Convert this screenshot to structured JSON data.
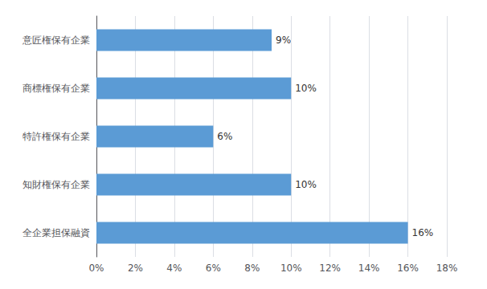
{
  "chart_data": {
    "type": "bar",
    "orientation": "horizontal",
    "categories": [
      "全企業担保融資",
      "知財権保有企業",
      "特許権保有企業",
      "商標権保有企業",
      "意匠権保有企業"
    ],
    "values": [
      16,
      10,
      6,
      10,
      9
    ],
    "value_labels": [
      "16%",
      "10%",
      "6%",
      "10%",
      "9%"
    ],
    "data_labels": true,
    "color": "#5b9bd5",
    "xlim": [
      0,
      18
    ],
    "xticks": [
      {
        "value": 0,
        "label": "0%"
      },
      {
        "value": 2,
        "label": "2%"
      },
      {
        "value": 4,
        "label": "4%"
      },
      {
        "value": 6,
        "label": "6%"
      },
      {
        "value": 8,
        "label": "8%"
      },
      {
        "value": 10,
        "label": "10%"
      },
      {
        "value": 12,
        "label": "12%"
      },
      {
        "value": 14,
        "label": "14%"
      },
      {
        "value": 16,
        "label": "16%"
      },
      {
        "value": 18,
        "label": "18%"
      }
    ],
    "grid": true
  }
}
